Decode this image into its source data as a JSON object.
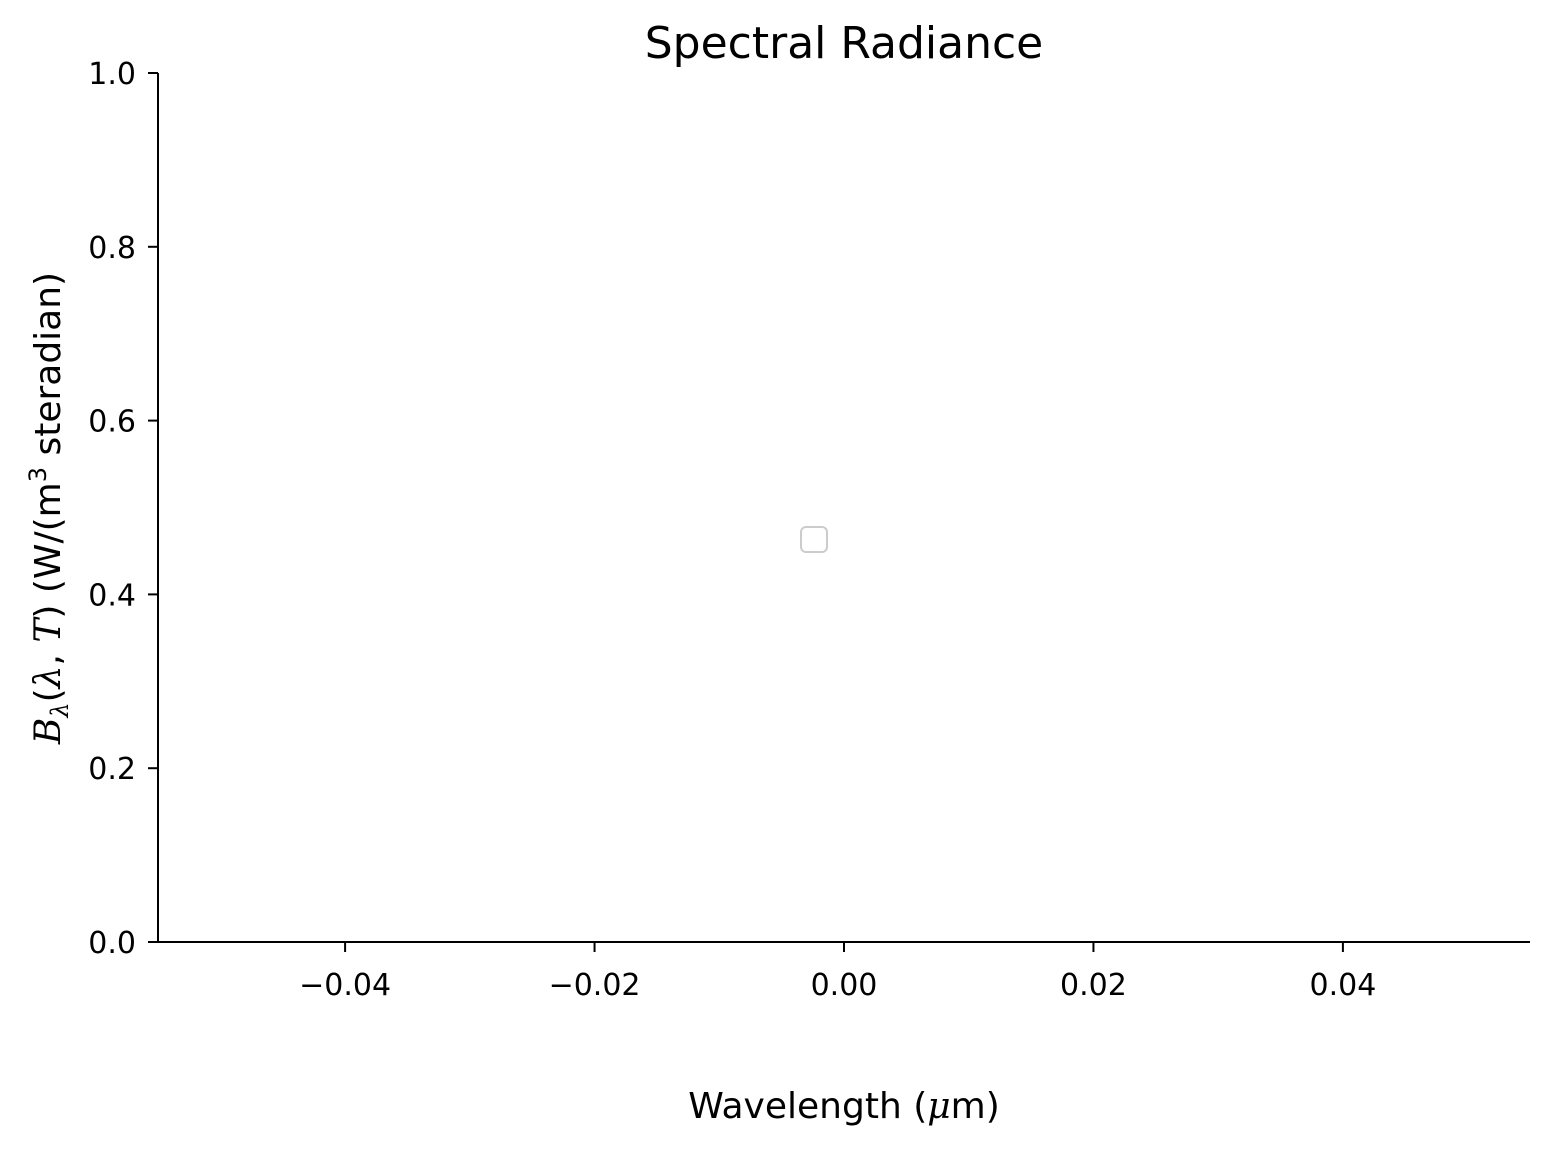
{
  "chart_data": {
    "type": "line",
    "title": "Spectral Radiance",
    "xlabel": {
      "before": "Wavelength (",
      "symbol": "μ",
      "after": "m)"
    },
    "ylabel": {
      "symbol": "B",
      "subscript": "λ",
      "args_open": "(",
      "arg1": "λ",
      "comma": ", ",
      "arg2": "T",
      "args_close": ")",
      "units_open": " (W/(m",
      "units_sup": "3",
      "units_close": " steradian)"
    },
    "xlim": [
      -0.055,
      0.055
    ],
    "ylim": [
      0.0,
      1.0
    ],
    "x_ticks": [
      -0.04,
      -0.02,
      0.0,
      0.02,
      0.04
    ],
    "x_tick_labels": [
      "−0.04",
      "−0.02",
      "0.00",
      "0.02",
      "0.04"
    ],
    "y_ticks": [
      0.0,
      0.2,
      0.4,
      0.6,
      0.8,
      1.0
    ],
    "y_tick_labels": [
      "0.0",
      "0.2",
      "0.4",
      "0.6",
      "0.8",
      "1.0"
    ],
    "series": [],
    "grid": false,
    "legend": {
      "placement": "best",
      "entries": [],
      "frame_color": "#cccccc"
    },
    "spines": [
      "left",
      "bottom"
    ],
    "colors": {
      "axis": "#000000",
      "background": "#ffffff"
    }
  }
}
